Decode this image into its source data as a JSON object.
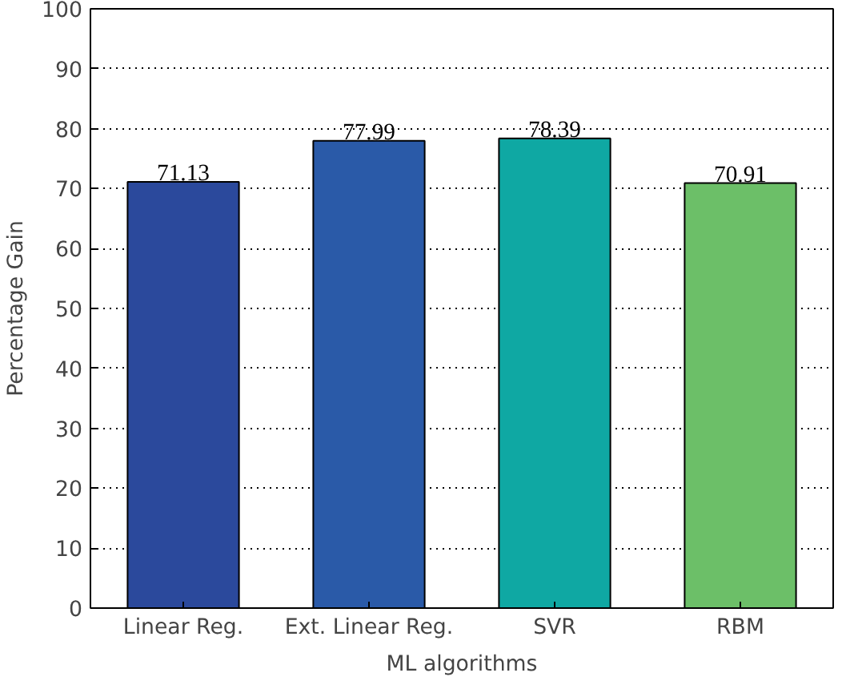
{
  "chart_data": {
    "type": "bar",
    "xlabel": "ML algorithms",
    "ylabel": "Percentage Gain",
    "categories": [
      "Linear Reg.",
      "Ext. Linear Reg.",
      "SVR",
      "RBM"
    ],
    "values": [
      71.13,
      77.99,
      78.39,
      70.91
    ],
    "colors": [
      "#2b499c",
      "#2a5aa8",
      "#0fa8a3",
      "#6cbf68"
    ],
    "ylim": [
      0,
      100
    ],
    "yticks": [
      0,
      10,
      20,
      30,
      40,
      50,
      60,
      70,
      80,
      90,
      100
    ],
    "grid": "y",
    "data_labels": true
  }
}
